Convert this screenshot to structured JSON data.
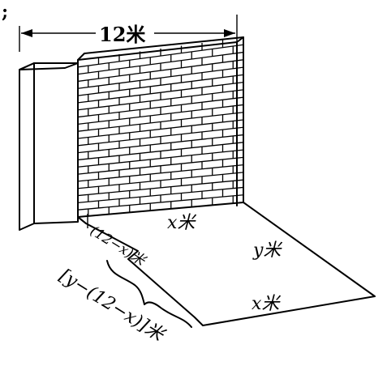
{
  "corner_mark": ";",
  "labels": {
    "top_length": "12米",
    "wall_x": "x米",
    "ground_y": "y米",
    "ground_x": "x米",
    "gap": "(12−x)米",
    "diff": "[y−(12−x)]米"
  }
}
